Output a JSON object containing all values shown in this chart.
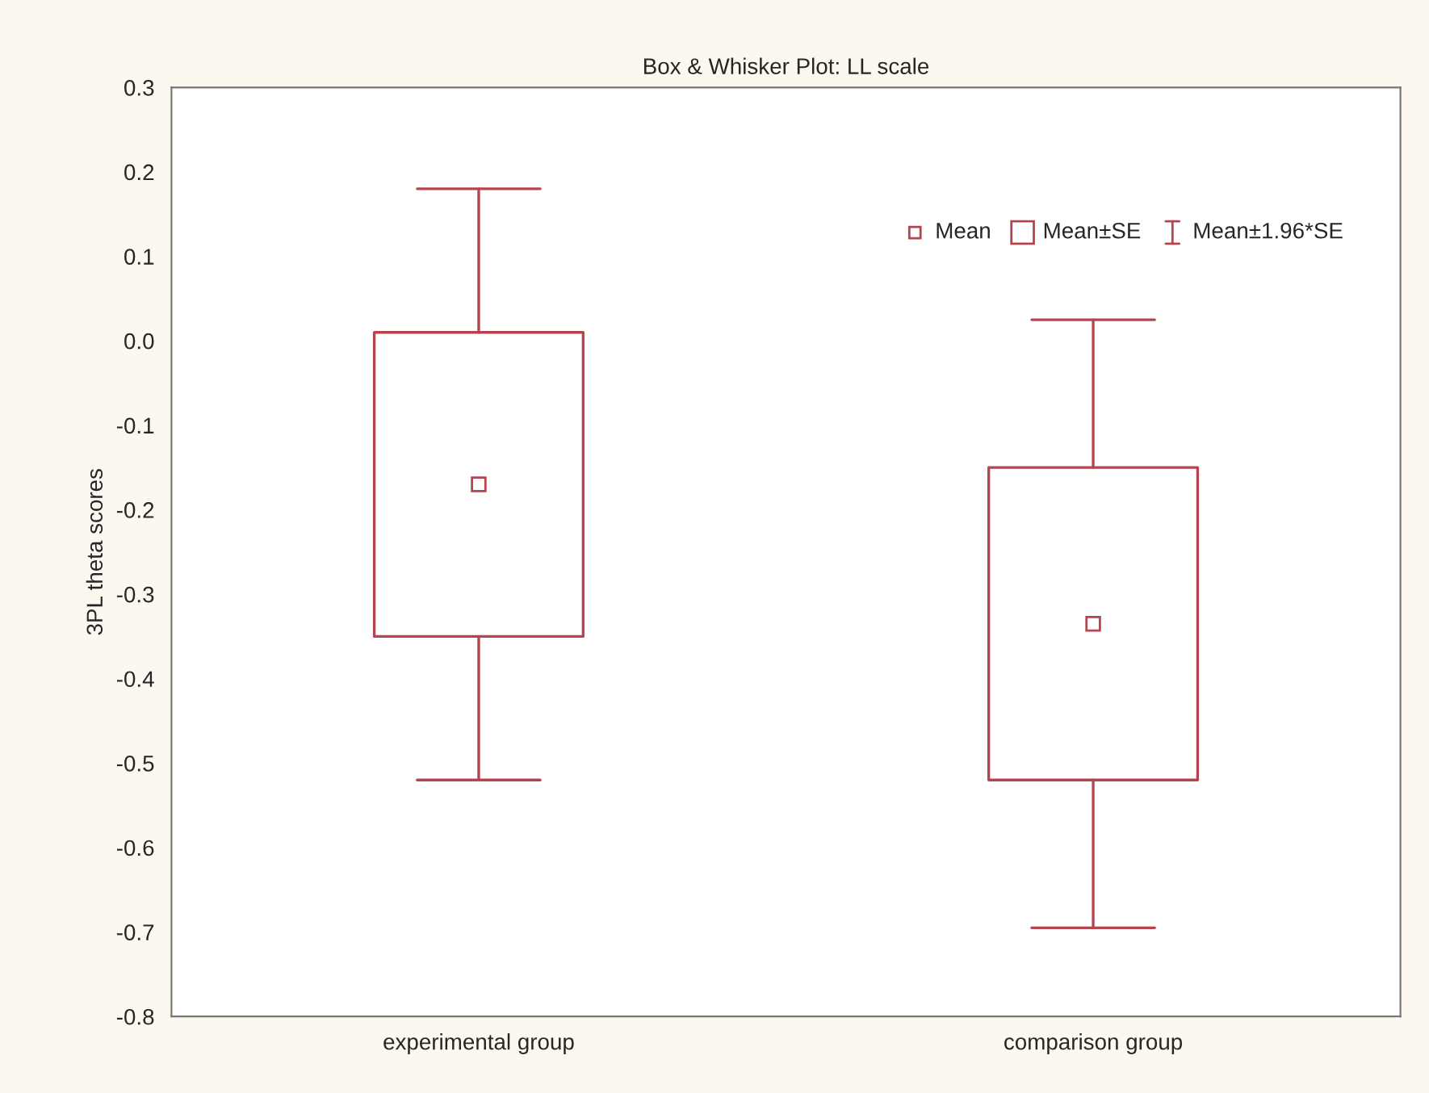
{
  "chart_data": {
    "type": "box",
    "title": "Box & Whisker Plot: LL scale",
    "ylabel": "3PL theta scores",
    "categories": [
      "experimental group",
      "comparison group"
    ],
    "boxes": [
      {
        "low": -0.52,
        "q1": -0.35,
        "median": -0.17,
        "q3": 0.01,
        "high": 0.18
      },
      {
        "low": -0.695,
        "q1": -0.52,
        "median": -0.335,
        "q3": -0.15,
        "high": 0.025
      }
    ],
    "color": "#b5444f",
    "ylim": [
      -0.8,
      0.3
    ],
    "yticks": [
      {
        "value": -0.8,
        "label": "-0.8"
      },
      {
        "value": -0.7,
        "label": "-0.7"
      },
      {
        "value": -0.6,
        "label": "-0.6"
      },
      {
        "value": -0.5,
        "label": "-0.5"
      },
      {
        "value": -0.4,
        "label": "-0.4"
      },
      {
        "value": -0.3,
        "label": "-0.3"
      },
      {
        "value": -0.2,
        "label": "-0.2"
      },
      {
        "value": -0.1,
        "label": "-0.1"
      },
      {
        "value": 0,
        "label": "0.0"
      },
      {
        "value": 0.1,
        "label": "0.1"
      },
      {
        "value": 0.2,
        "label": "0.2"
      },
      {
        "value": 0.3,
        "label": "0.3"
      }
    ],
    "annotations": [
      "Mean",
      "Mean±SE",
      "Mean±1.96*SE"
    ],
    "grid": false,
    "marker": "square"
  }
}
